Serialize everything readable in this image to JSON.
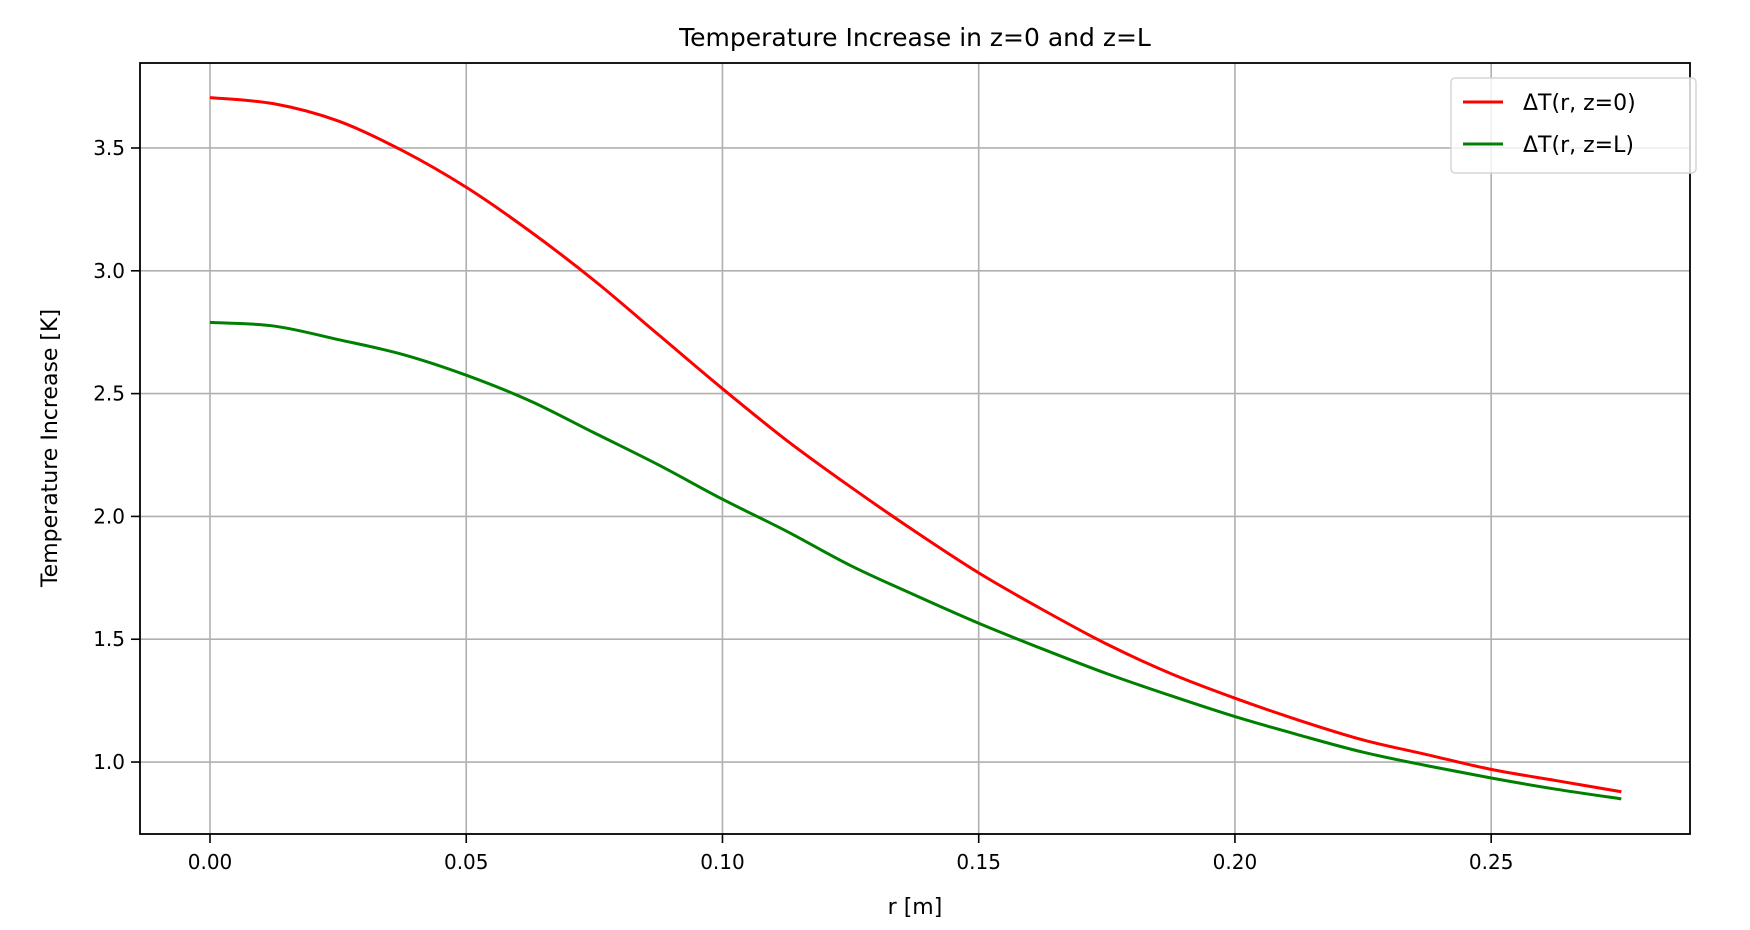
{
  "chart_data": {
    "type": "line",
    "title": "Temperature Increase in z=0 and z=L",
    "xlabel": "r [m]",
    "ylabel": "Temperature Increase [K]",
    "xlim": [
      -0.01366,
      0.2888
    ],
    "ylim": [
      0.707,
      3.846
    ],
    "xticks": [
      0.0,
      0.05,
      0.1,
      0.15,
      0.2,
      0.25
    ],
    "xtick_labels": [
      "0.00",
      "0.05",
      "0.10",
      "0.15",
      "0.20",
      "0.25"
    ],
    "yticks": [
      1.0,
      1.5,
      2.0,
      2.5,
      3.0,
      3.5
    ],
    "ytick_labels": [
      "1.0",
      "1.5",
      "2.0",
      "2.5",
      "3.0",
      "3.5"
    ],
    "grid": true,
    "legend_position": "top-right",
    "x": [
      0.0,
      0.0125,
      0.025,
      0.0375,
      0.05,
      0.0625,
      0.075,
      0.0875,
      0.1,
      0.1125,
      0.125,
      0.1375,
      0.15,
      0.1625,
      0.175,
      0.1875,
      0.2,
      0.2125,
      0.225,
      0.2375,
      0.25,
      0.2625,
      0.2754
    ],
    "series": [
      {
        "name": "ΔT(r, z=0)",
        "color": "#ff0000",
        "values": [
          3.705,
          3.68,
          3.61,
          3.49,
          3.34,
          3.16,
          2.96,
          2.74,
          2.52,
          2.31,
          2.12,
          1.94,
          1.77,
          1.62,
          1.48,
          1.36,
          1.26,
          1.17,
          1.09,
          1.03,
          0.97,
          0.925,
          0.879
        ]
      },
      {
        "name": "ΔT(r, z=L)",
        "color": "#008000",
        "values": [
          2.79,
          2.775,
          2.72,
          2.66,
          2.575,
          2.47,
          2.34,
          2.21,
          2.07,
          1.94,
          1.8,
          1.68,
          1.565,
          1.46,
          1.36,
          1.27,
          1.185,
          1.11,
          1.04,
          0.985,
          0.935,
          0.89,
          0.85
        ]
      }
    ]
  }
}
